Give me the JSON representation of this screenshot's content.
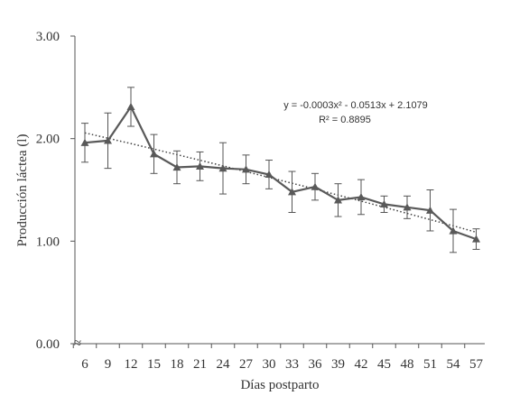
{
  "chart_data": {
    "type": "line",
    "title": "",
    "xlabel": "Días postparto",
    "ylabel": "Producción láctea (l)",
    "x": [
      6,
      9,
      12,
      15,
      18,
      21,
      24,
      27,
      30,
      33,
      36,
      39,
      42,
      45,
      48,
      51,
      54,
      57
    ],
    "x_tick_labels": [
      "6",
      "9",
      "12",
      "15",
      "18",
      "21",
      "24",
      "27",
      "30",
      "33",
      "36",
      "39",
      "42",
      "45",
      "48",
      "51",
      "54",
      "57"
    ],
    "y_tick_labels": [
      "0.00",
      "1.00",
      "2.00",
      "3.00"
    ],
    "y_ticks": [
      0,
      1,
      2,
      3
    ],
    "ylim": [
      0,
      3
    ],
    "series": [
      {
        "values": [
          1.96,
          1.98,
          2.31,
          1.85,
          1.72,
          1.73,
          1.71,
          1.7,
          1.65,
          1.48,
          1.53,
          1.4,
          1.43,
          1.36,
          1.33,
          1.3,
          1.1,
          1.02
        ],
        "error": [
          0.19,
          0.27,
          0.19,
          0.19,
          0.16,
          0.14,
          0.25,
          0.14,
          0.14,
          0.2,
          0.13,
          0.16,
          0.17,
          0.08,
          0.11,
          0.2,
          0.21,
          0.1
        ],
        "marker": "triangle",
        "color": "#595959"
      }
    ],
    "trendline": {
      "type": "polynomial",
      "coefficients": [
        -0.0003,
        -0.0513,
        2.1079
      ],
      "style": "dotted",
      "color": "#404040"
    },
    "annotations": [
      {
        "text": "y = -0.0003x² - 0.0513x + 2.1079"
      },
      {
        "text": "R² = 0.8895"
      }
    ],
    "grid": false,
    "legend": "none",
    "axis_break_marker": "≈"
  }
}
